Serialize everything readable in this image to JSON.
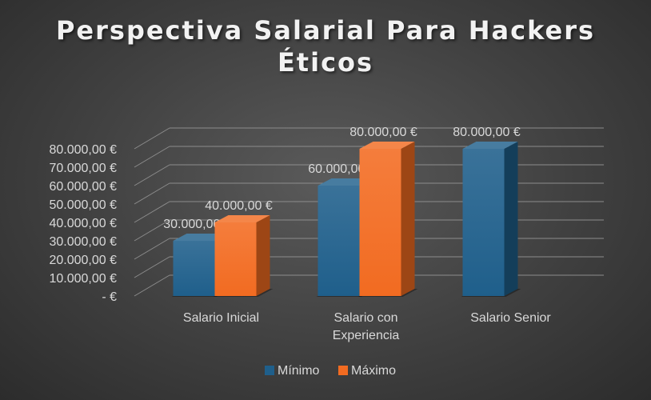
{
  "chart_data": {
    "type": "bar",
    "title": "Perspectiva Salarial Para Hackers Éticos",
    "title_lines": [
      "Perspectiva Salarial Para Hackers",
      "Éticos"
    ],
    "xlabel": "",
    "ylabel": "",
    "categories": [
      "Salario Inicial",
      "Salario con Experiencia",
      "Salario Senior"
    ],
    "category_lines": [
      [
        "Salario Inicial"
      ],
      [
        "Salario con",
        "Experiencia"
      ],
      [
        "Salario Senior"
      ]
    ],
    "series": [
      {
        "name": "Mínimo",
        "color": "#1f5f8b",
        "values": [
          30000,
          60000,
          80000
        ],
        "labels": [
          "30.000,00 €",
          "60.000,00 €",
          "80.000,00 €"
        ]
      },
      {
        "name": "Máximo",
        "color": "#f26b21",
        "values": [
          40000,
          80000,
          null
        ],
        "labels": [
          "40.000,00 €",
          "80.000,00 €",
          null
        ]
      }
    ],
    "ylim": [
      0,
      80000
    ],
    "yticks": [
      0,
      10000,
      20000,
      30000,
      40000,
      50000,
      60000,
      70000,
      80000
    ],
    "ytick_labels": [
      "-  €",
      "10.000,00 €",
      "20.000,00 €",
      "30.000,00 €",
      "40.000,00 €",
      "50.000,00 €",
      "60.000,00 €",
      "70.000,00 €",
      "80.000,00 €"
    ],
    "grid": true,
    "legend_position": "bottom",
    "style": "3d-clustered-column",
    "background": "#404040"
  }
}
